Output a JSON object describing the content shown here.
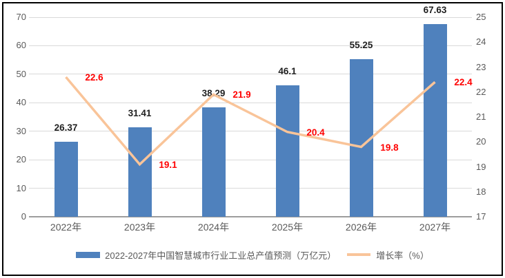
{
  "chart_data": {
    "type": "bar",
    "subtype": "combo-bar-line-dual-axis",
    "title": "",
    "categories": [
      "2022年",
      "2023年",
      "2024年",
      "2025年",
      "2026年",
      "2027年"
    ],
    "series": [
      {
        "name": "2022-2027年中国智慧城市行业工业总产值预测（万亿元）",
        "type": "bar",
        "axis": "left",
        "values": [
          26.37,
          31.41,
          38.29,
          46.1,
          55.25,
          67.63
        ],
        "labels": [
          "26.37",
          "31.41",
          "38.29",
          "46.1",
          "55.25",
          "67.63"
        ],
        "color": "#4f81bd",
        "label_color": "#1f1f1f"
      },
      {
        "name": "增长率（%）",
        "type": "line",
        "axis": "right",
        "values": [
          22.6,
          19.1,
          21.9,
          20.4,
          19.8,
          22.4
        ],
        "labels": [
          "22.6",
          "19.1",
          "21.9",
          "20.4",
          "19.8",
          "22.4"
        ],
        "color": "#f9c499",
        "label_color": "#ff0000"
      }
    ],
    "left_axis": {
      "min": 0,
      "max": 70,
      "step": 10,
      "tick_labels": [
        "0",
        "10",
        "20",
        "30",
        "40",
        "50",
        "60",
        "70"
      ]
    },
    "right_axis": {
      "min": 17,
      "max": 25,
      "step": 1,
      "tick_labels": [
        "17",
        "18",
        "19",
        "20",
        "21",
        "22",
        "23",
        "24",
        "25"
      ]
    },
    "grid": true,
    "legend_position": "bottom",
    "colors": {
      "bar": "#4f81bd",
      "line": "#f9c499",
      "line_label": "#ff0000",
      "axis_text": "#595959",
      "gridline": "#d9d9d9",
      "baseline": "#9c9c9c",
      "border": "#000000",
      "background": "#ffffff"
    }
  }
}
